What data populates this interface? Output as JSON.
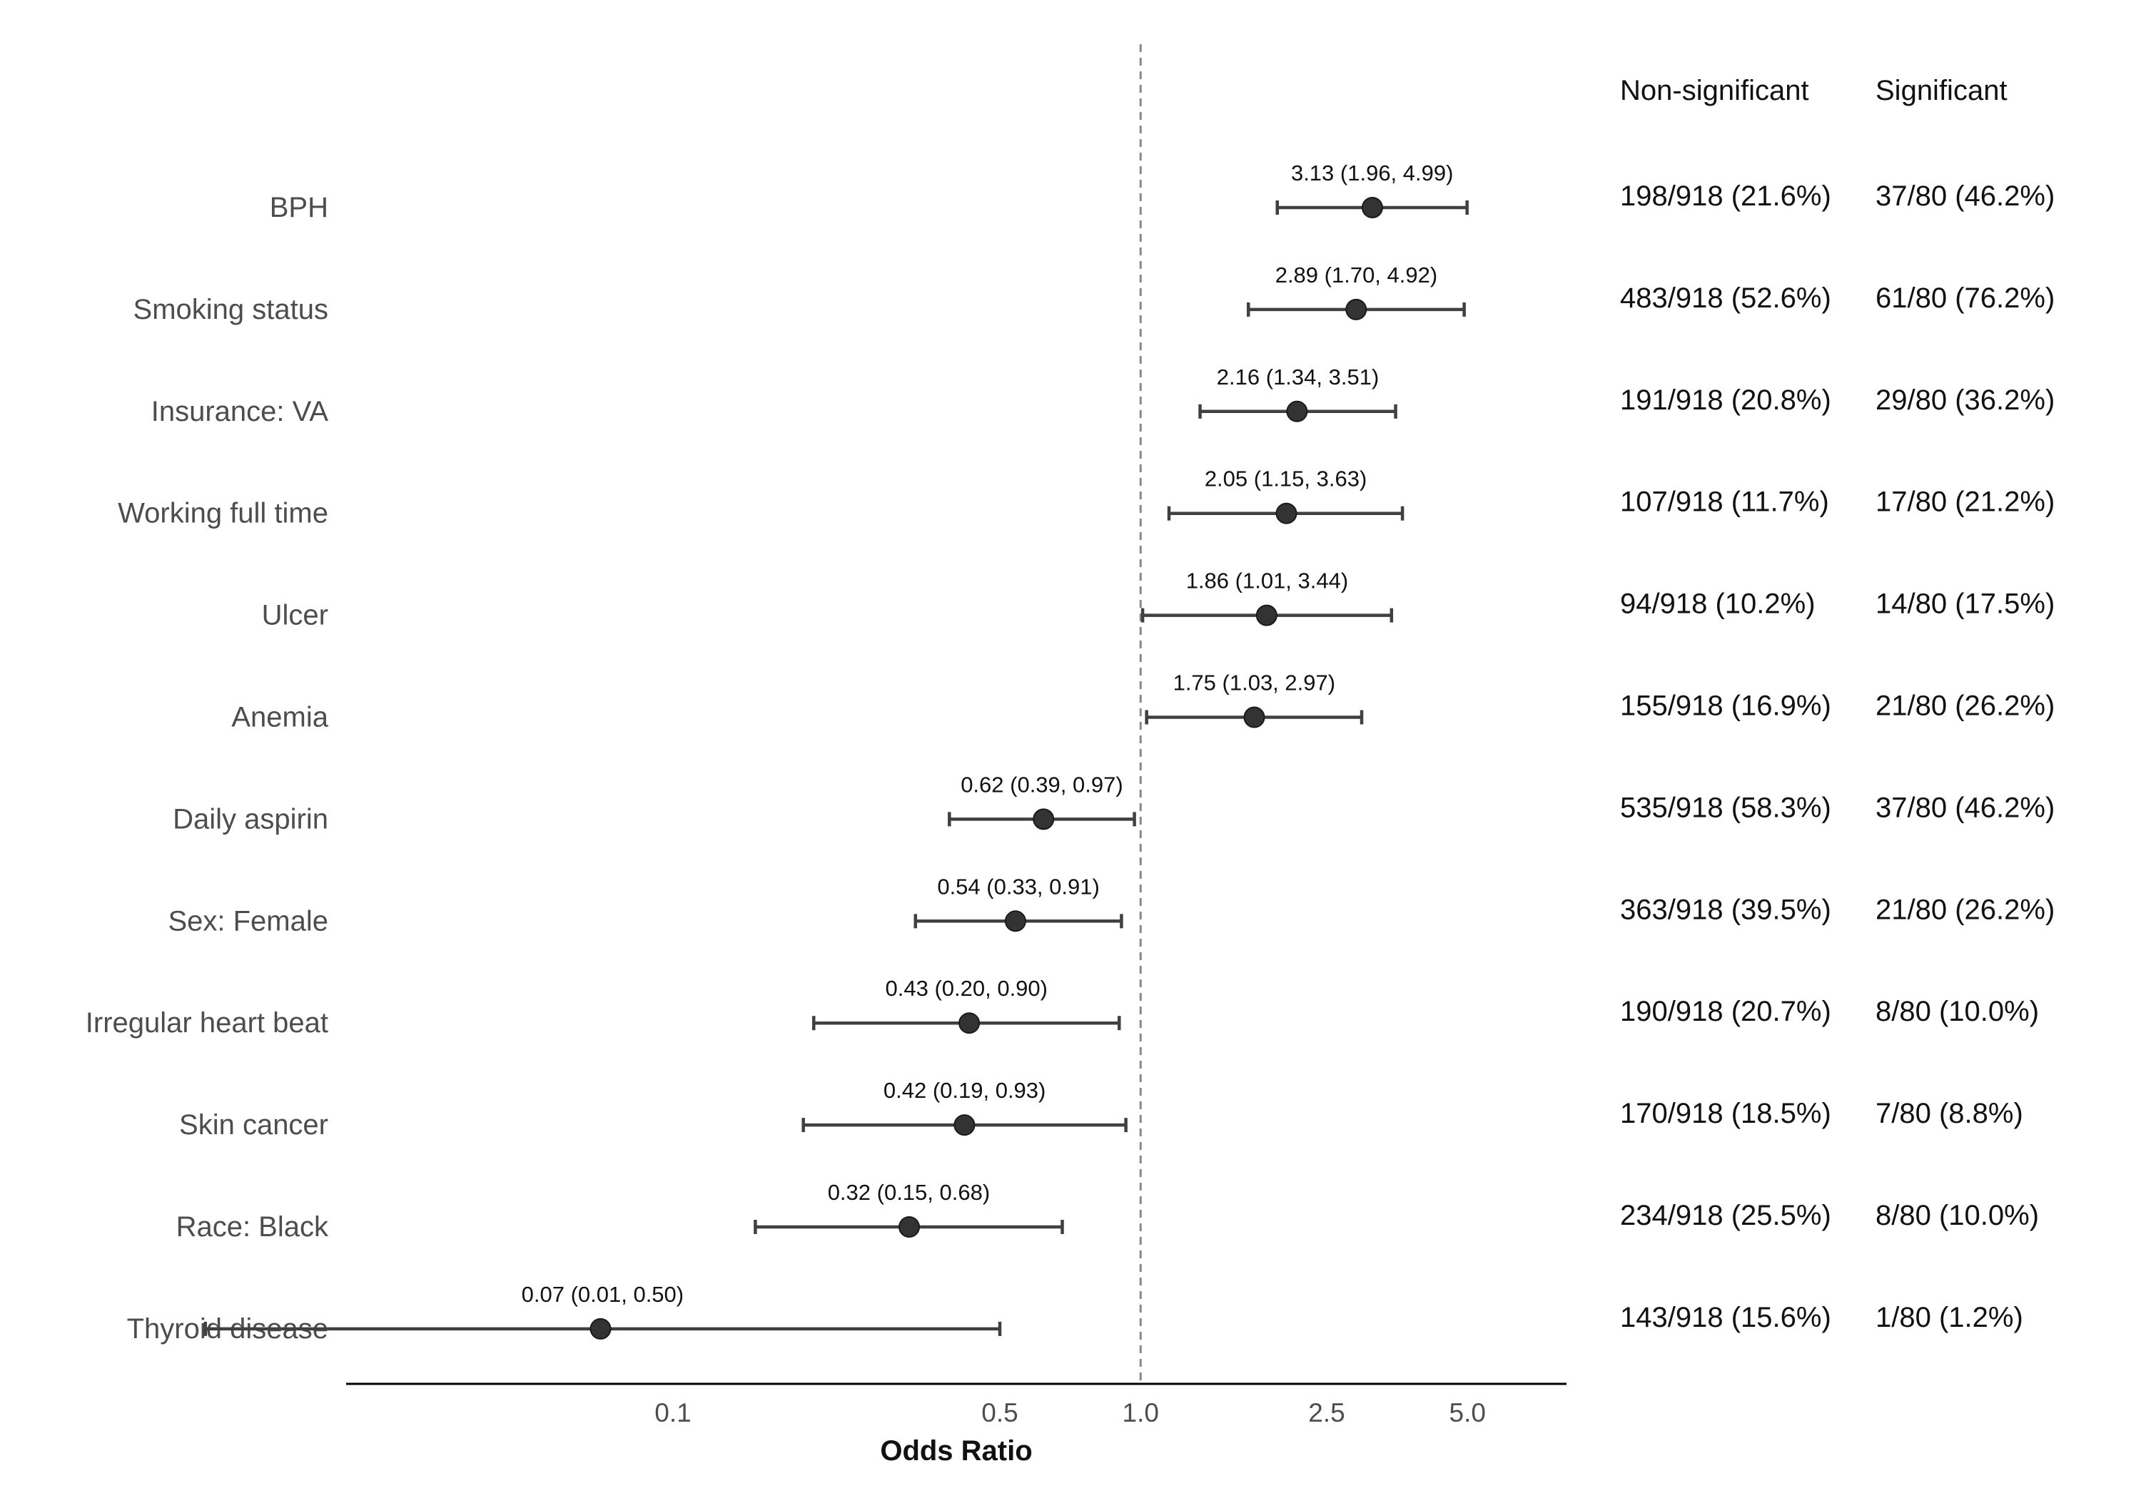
{
  "chart_data": {
    "type": "forest",
    "xlabel": "Odds Ratio",
    "x_scale": "log",
    "xlim": [
      0.02,
      8.0
    ],
    "xticks": [
      0.1,
      0.5,
      1.0,
      2.5,
      5.0
    ],
    "xtick_labels": [
      "0.1",
      "0.5",
      "1.0",
      "2.5",
      "5.0"
    ],
    "reference_line": 1.0,
    "column_headers": [
      "Non-significant",
      "Significant"
    ],
    "rows": [
      {
        "label": "BPH",
        "or": 3.13,
        "lower": 1.96,
        "upper": 4.99,
        "est_text": "3.13 (1.96, 4.99)",
        "nonsig": "198/918 (21.6%)",
        "sig": "37/80 (46.2%)"
      },
      {
        "label": "Smoking status",
        "or": 2.89,
        "lower": 1.7,
        "upper": 4.92,
        "est_text": "2.89 (1.70, 4.92)",
        "nonsig": "483/918 (52.6%)",
        "sig": "61/80 (76.2%)"
      },
      {
        "label": "Insurance: VA",
        "or": 2.16,
        "lower": 1.34,
        "upper": 3.51,
        "est_text": "2.16 (1.34, 3.51)",
        "nonsig": "191/918 (20.8%)",
        "sig": "29/80 (36.2%)"
      },
      {
        "label": "Working full time",
        "or": 2.05,
        "lower": 1.15,
        "upper": 3.63,
        "est_text": "2.05 (1.15, 3.63)",
        "nonsig": "107/918 (11.7%)",
        "sig": "17/80 (21.2%)"
      },
      {
        "label": "Ulcer",
        "or": 1.86,
        "lower": 1.01,
        "upper": 3.44,
        "est_text": "1.86 (1.01, 3.44)",
        "nonsig": "94/918 (10.2%)",
        "sig": "14/80 (17.5%)"
      },
      {
        "label": "Anemia",
        "or": 1.75,
        "lower": 1.03,
        "upper": 2.97,
        "est_text": "1.75 (1.03, 2.97)",
        "nonsig": "155/918 (16.9%)",
        "sig": "21/80 (26.2%)"
      },
      {
        "label": "Daily aspirin",
        "or": 0.62,
        "lower": 0.39,
        "upper": 0.97,
        "est_text": "0.62 (0.39, 0.97)",
        "nonsig": "535/918 (58.3%)",
        "sig": "37/80 (46.2%)"
      },
      {
        "label": "Sex: Female",
        "or": 0.54,
        "lower": 0.33,
        "upper": 0.91,
        "est_text": "0.54 (0.33, 0.91)",
        "nonsig": "363/918 (39.5%)",
        "sig": "21/80 (26.2%)"
      },
      {
        "label": "Irregular heart beat",
        "or": 0.43,
        "lower": 0.2,
        "upper": 0.9,
        "est_text": "0.43 (0.20, 0.90)",
        "nonsig": "190/918 (20.7%)",
        "sig": "8/80 (10.0%)"
      },
      {
        "label": "Skin cancer",
        "or": 0.42,
        "lower": 0.19,
        "upper": 0.93,
        "est_text": "0.42 (0.19, 0.93)",
        "nonsig": "170/918 (18.5%)",
        "sig": "7/80 (8.8%)"
      },
      {
        "label": "Race: Black",
        "or": 0.32,
        "lower": 0.15,
        "upper": 0.68,
        "est_text": "0.32 (0.15, 0.68)",
        "nonsig": "234/918 (25.5%)",
        "sig": "8/80 (10.0%)"
      },
      {
        "label": "Thyroid disease",
        "or": 0.07,
        "lower": 0.01,
        "upper": 0.5,
        "est_text": "0.07 (0.01, 0.50)",
        "nonsig": "143/918 (15.6%)",
        "sig": "1/80 (1.2%)"
      }
    ]
  },
  "colors": {
    "point": "#333333",
    "line": "#404040",
    "reference": "#888888",
    "axis": "#000000"
  }
}
